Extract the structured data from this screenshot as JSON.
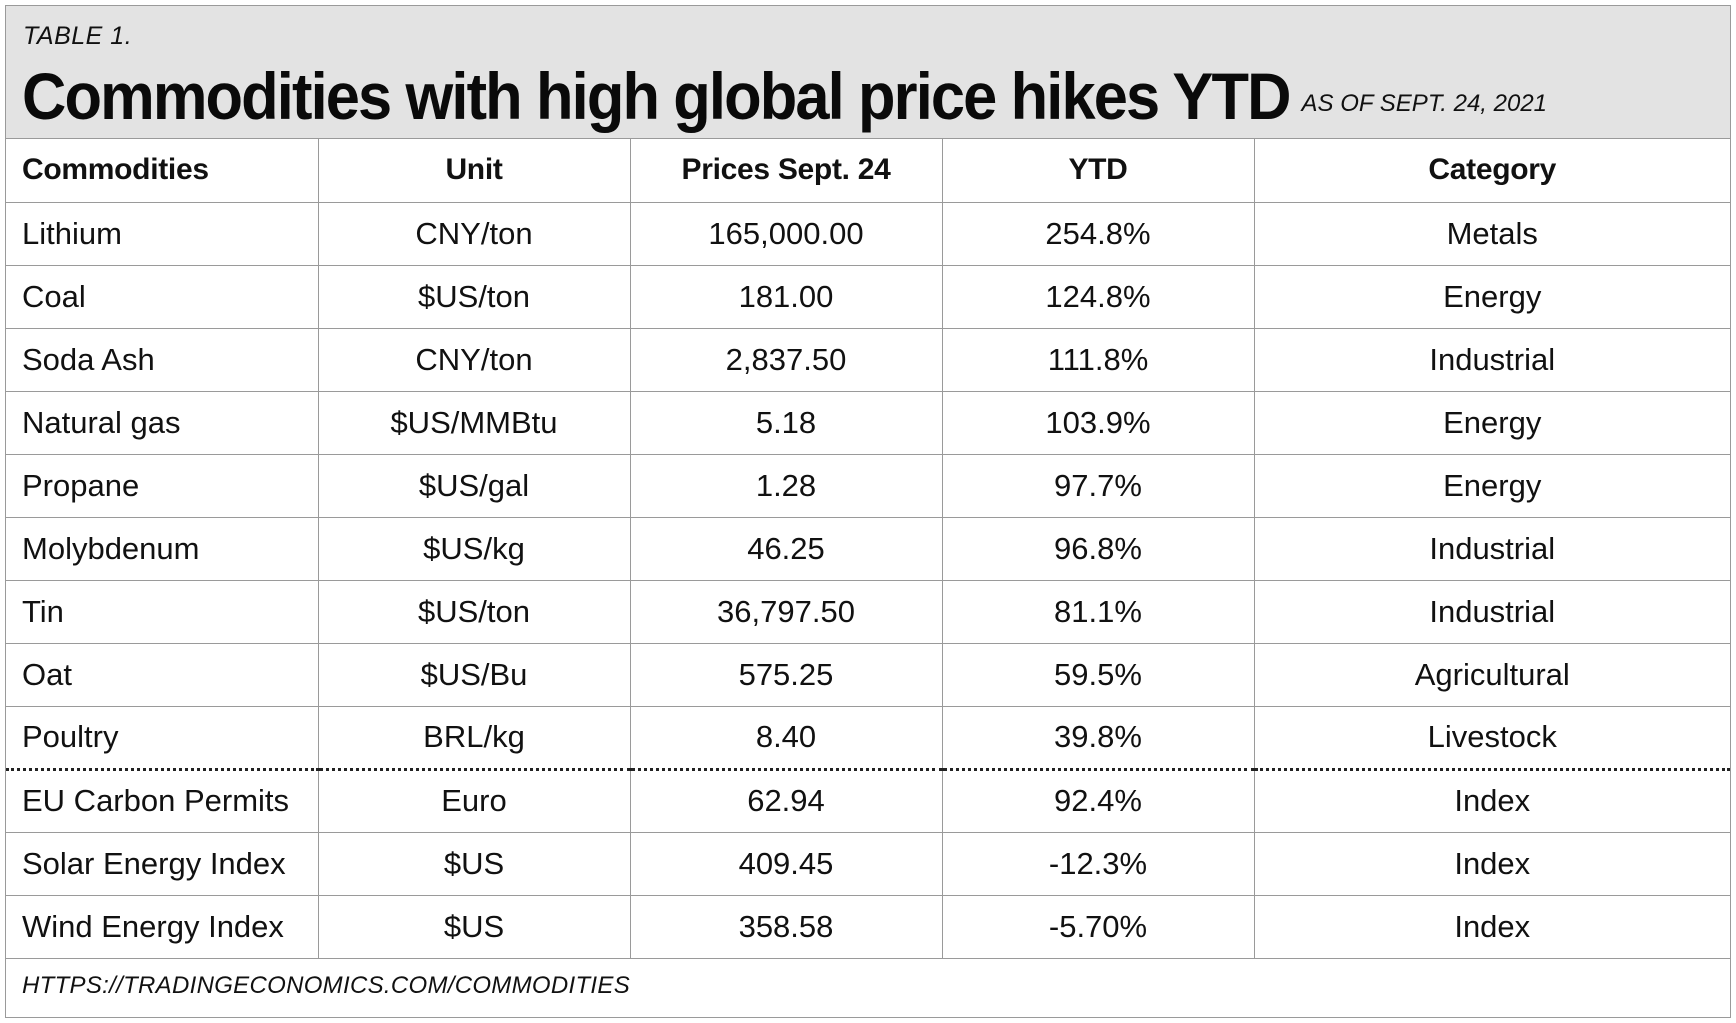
{
  "header": {
    "table_label": "TABLE 1.",
    "title": "Commodities with high global price hikes YTD",
    "as_of": "AS OF SEPT. 24, 2021"
  },
  "chart_data": {
    "type": "table",
    "columns": [
      "Commodities",
      "Unit",
      "Prices Sept. 24",
      "YTD",
      "Category"
    ],
    "rows": [
      [
        "Lithium",
        "CNY/ton",
        "165,000.00",
        "254.8%",
        "Metals"
      ],
      [
        "Coal",
        "$US/ton",
        "181.00",
        "124.8%",
        "Energy"
      ],
      [
        "Soda Ash",
        "CNY/ton",
        "2,837.50",
        "111.8%",
        "Industrial"
      ],
      [
        "Natural gas",
        "$US/MMBtu",
        "5.18",
        "103.9%",
        "Energy"
      ],
      [
        "Propane",
        "$US/gal",
        "1.28",
        "97.7%",
        "Energy"
      ],
      [
        "Molybdenum",
        "$US/kg",
        "46.25",
        "96.8%",
        "Industrial"
      ],
      [
        "Tin",
        "$US/ton",
        "36,797.50",
        "81.1%",
        "Industrial"
      ],
      [
        "Oat",
        "$US/Bu",
        "575.25",
        "59.5%",
        "Agricultural"
      ],
      [
        "Poultry",
        "BRL/kg",
        "8.40",
        "39.8%",
        "Livestock"
      ],
      [
        "EU Carbon Permits",
        "Euro",
        "62.94",
        "92.4%",
        "Index"
      ],
      [
        "Solar Energy Index",
        "$US",
        "409.45",
        "-12.3%",
        "Index"
      ],
      [
        "Wind Energy Index",
        "$US",
        "358.58",
        "-5.70%",
        "Index"
      ]
    ]
  },
  "footer": {
    "source": "HTTPS://TRADINGECONOMICS.COM/COMMODITIES"
  },
  "colors": {
    "header_background": "#e3e3e3",
    "grid_line": "#9a9a9a",
    "text": "#111111"
  }
}
